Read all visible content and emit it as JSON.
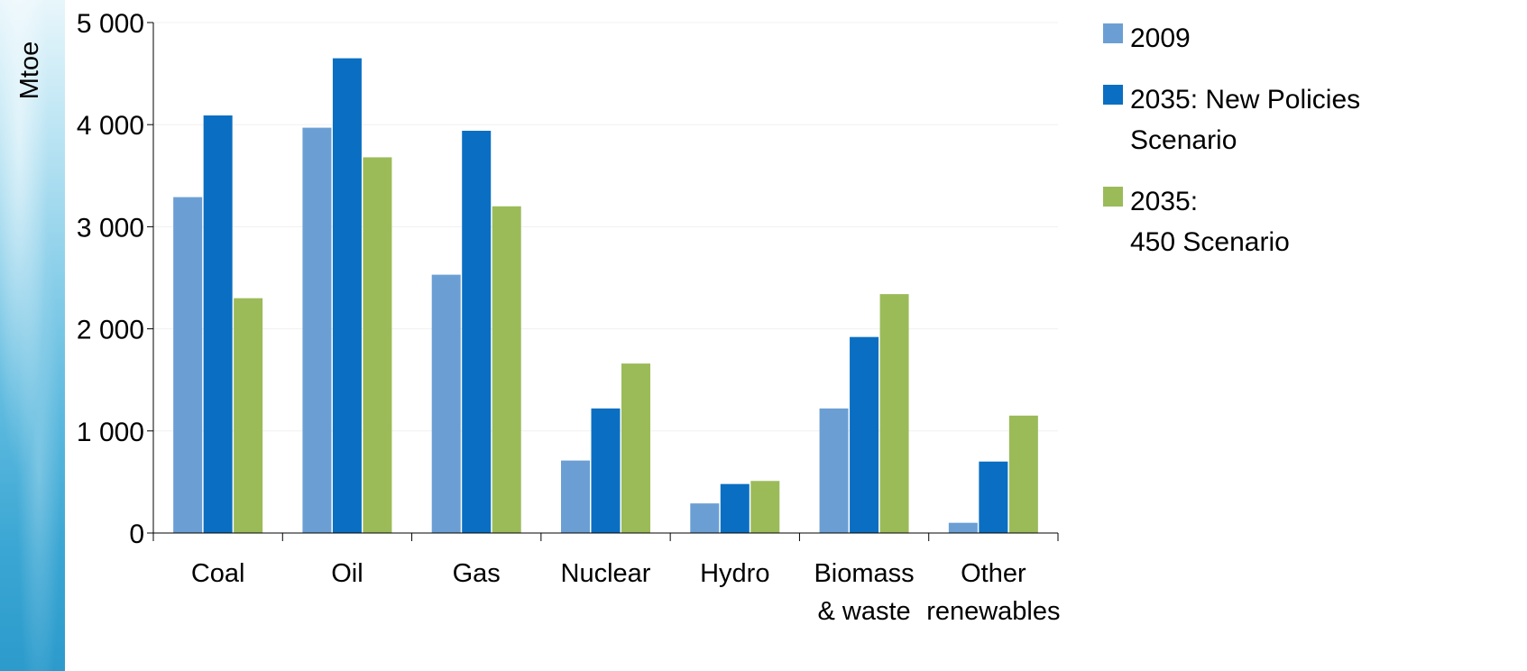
{
  "chart_data": {
    "type": "bar",
    "ylabel": "Mtoe",
    "ylim": [
      0,
      5000
    ],
    "yticks": [
      0,
      1000,
      2000,
      3000,
      4000,
      5000
    ],
    "ytick_labels": [
      "0",
      "1 000",
      "2 000",
      "3 000",
      "4 000",
      "5 000"
    ],
    "categories": [
      [
        "Coal"
      ],
      [
        "Oil"
      ],
      [
        "Gas"
      ],
      [
        "Nuclear"
      ],
      [
        "Hydro"
      ],
      [
        "Biomass",
        "& waste"
      ],
      [
        "Other",
        "renewables"
      ]
    ],
    "series": [
      {
        "name": [
          "2009"
        ],
        "color": "#6b9fd4",
        "values": [
          3290,
          3970,
          2530,
          710,
          290,
          1220,
          100
        ]
      },
      {
        "name": [
          "2035: New Policies",
          "Scenario"
        ],
        "color": "#0a6fc2",
        "values": [
          4090,
          4650,
          3940,
          1220,
          480,
          1920,
          700
        ]
      },
      {
        "name": [
          "2035:",
          "450 Scenario"
        ],
        "color": "#9bbb59",
        "values": [
          2300,
          3680,
          3200,
          1660,
          510,
          2340,
          1150
        ]
      }
    ],
    "grid": true,
    "legend": "top-right"
  }
}
